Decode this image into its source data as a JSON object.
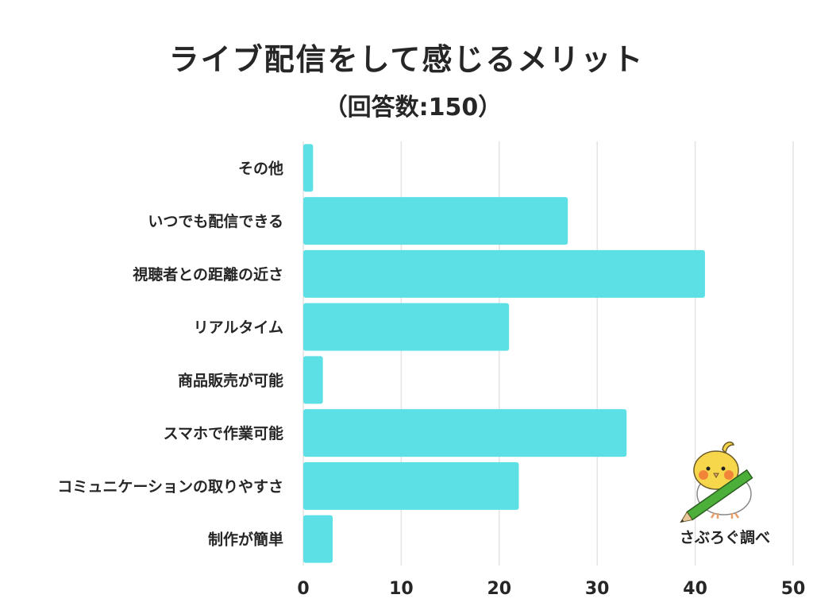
{
  "chart_data": {
    "type": "bar",
    "orientation": "horizontal",
    "title": "ライブ配信をして感じるメリット",
    "subtitle": "（回答数:150）",
    "categories": [
      "その他",
      "いつでも配信できる",
      "視聴者との距離の近さ",
      "リアルタイム",
      "商品販売が可能",
      "スマホで作業可能",
      "コミュニケーションの取りやすさ",
      "制作が簡単"
    ],
    "values": [
      1,
      27,
      41,
      21,
      2,
      33,
      22,
      3
    ],
    "xlim": [
      0,
      50
    ],
    "xticks": [
      "0",
      "10",
      "20",
      "30",
      "40",
      "50"
    ],
    "grid": true,
    "bar_color": "#5ce0e6",
    "grid_color": "#e3e3e3",
    "text_color": "#262626"
  },
  "credit": "さぶろぐ調べ",
  "mascot_icon": "bird-with-pencil-icon"
}
